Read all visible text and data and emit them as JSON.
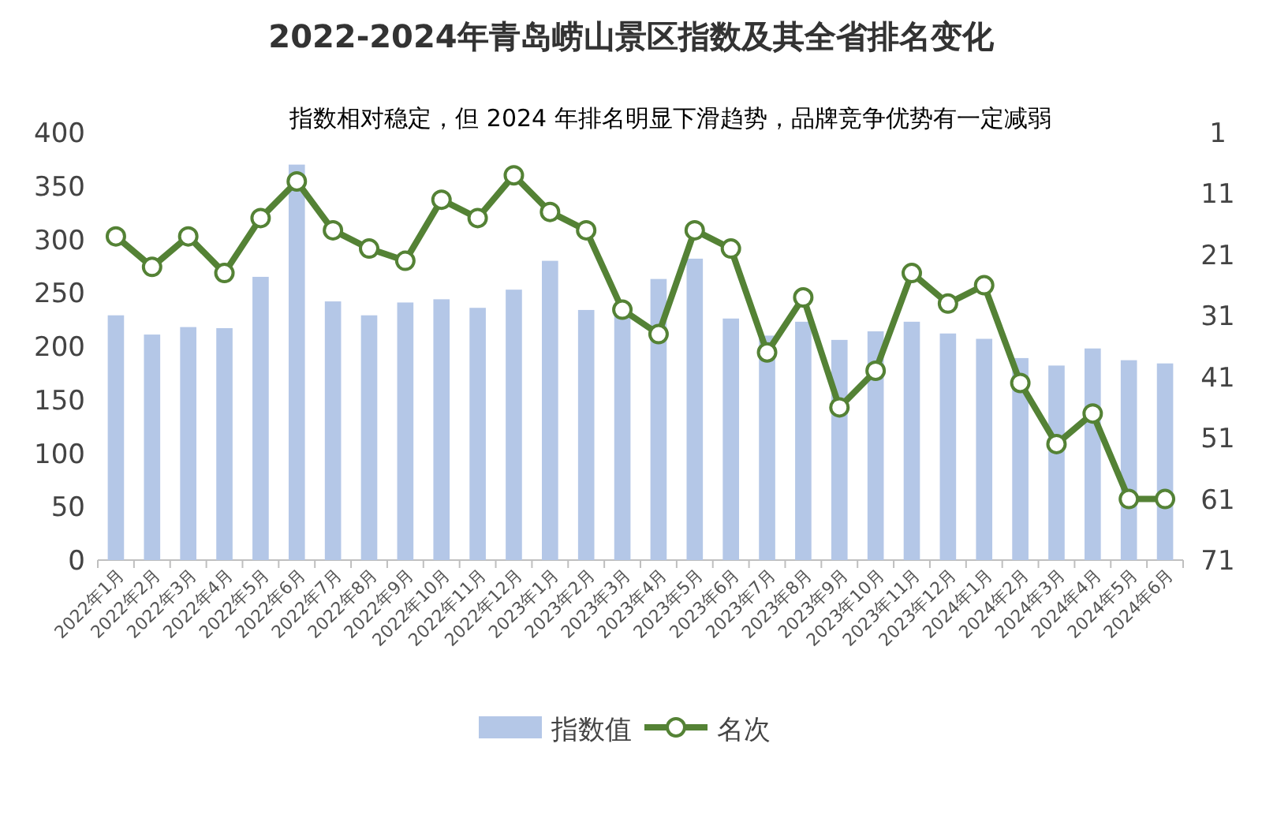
{
  "chart_data": {
    "type": "bar",
    "title": "2022-2024年青岛崂山景区指数及其全省排名变化",
    "subtitle": "指数相对稳定，但 2024 年排名明显下滑趋势，品牌竞争优势有一定减弱",
    "categories": [
      "2022年1月",
      "2022年2月",
      "2022年3月",
      "2022年4月",
      "2022年5月",
      "2022年6月",
      "2022年7月",
      "2022年8月",
      "2022年9月",
      "2022年10月",
      "2022年11月",
      "2022年12月",
      "2023年1月",
      "2023年2月",
      "2023年3月",
      "2023年4月",
      "2023年5月",
      "2023年6月",
      "2023年7月",
      "2023年8月",
      "2023年9月",
      "2023年10月",
      "2023年11月",
      "2023年12月",
      "2024年1月",
      "2024年2月",
      "2024年3月",
      "2024年4月",
      "2024年5月",
      "2024年6月"
    ],
    "series": [
      {
        "name": "指数值",
        "color": "#b4c7e7",
        "values": [
          229,
          211,
          218,
          217,
          265,
          370,
          242,
          229,
          241,
          244,
          236,
          253,
          280,
          234,
          230,
          263,
          282,
          226,
          210,
          223,
          206,
          214,
          223,
          212,
          207,
          189,
          182,
          198,
          187,
          184
        ]
      },
      {
        "name": "名次",
        "type": "line",
        "axis": "y2",
        "color": "#548235",
        "values": [
          18,
          23,
          18,
          24,
          15,
          9,
          17,
          20,
          22,
          12,
          15,
          8,
          14,
          17,
          30,
          34,
          17,
          20,
          37,
          28,
          46,
          40,
          24,
          29,
          26,
          42,
          52,
          47,
          61,
          61
        ]
      }
    ],
    "ylim": [
      0,
      400
    ],
    "yticks": [
      0,
      50,
      100,
      150,
      200,
      250,
      300,
      350,
      400
    ],
    "y2lim": [
      71,
      1
    ],
    "y2ticks": [
      1,
      11,
      21,
      31,
      41,
      51,
      61,
      71
    ],
    "marker": "circle",
    "line_style": "solid",
    "grid": false,
    "legend": "bottom"
  }
}
